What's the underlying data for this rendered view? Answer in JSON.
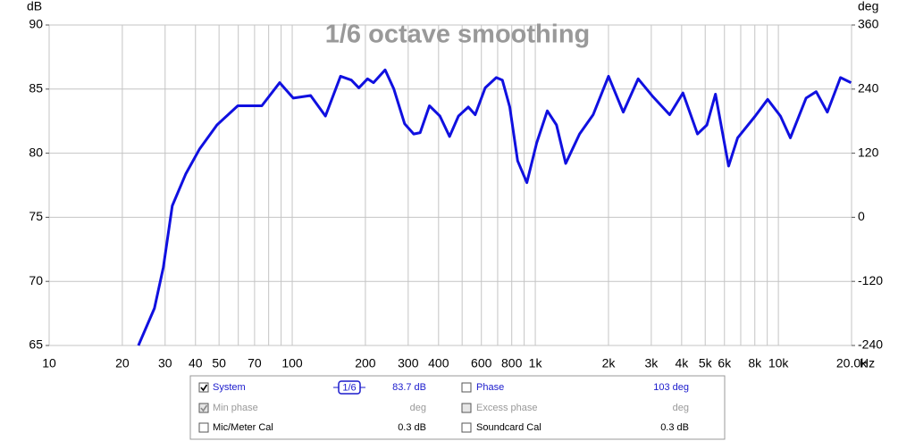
{
  "chart_data": {
    "type": "line",
    "title": "1/6 octave smoothing",
    "ylabel": "dB",
    "y2label": "deg",
    "xlabel": "Hz",
    "xscale": "log",
    "grid": true,
    "x": [
      23.3,
      27.1,
      29.5,
      32.1,
      36.5,
      41.5,
      49,
      59.7,
      75,
      88.8,
      101,
      119,
      137,
      158,
      175,
      188,
      204,
      216,
      241,
      262,
      290,
      316,
      336,
      367,
      405,
      444,
      483,
      530,
      566,
      622,
      691,
      732,
      785,
      846,
      923,
      1013,
      1120,
      1222,
      1334,
      1521,
      1729,
      2000,
      2300,
      2650,
      3050,
      3570,
      4050,
      4650,
      5080,
      5510,
      5940,
      6240,
      6800,
      8030,
      9030,
      10200,
      11200,
      13000,
      14300,
      15900,
      18000,
      19900
    ],
    "series": [
      {
        "name": "System",
        "color": "#1010e0",
        "values": [
          65.0,
          67.9,
          71.1,
          75.9,
          78.4,
          80.3,
          82.2,
          83.7,
          83.7,
          85.5,
          84.3,
          84.5,
          82.9,
          86.0,
          85.7,
          85.1,
          85.8,
          85.5,
          86.5,
          85.0,
          82.3,
          81.5,
          81.6,
          83.7,
          82.9,
          81.3,
          82.9,
          83.6,
          83.0,
          85.1,
          85.9,
          85.7,
          83.6,
          79.4,
          77.7,
          80.8,
          83.3,
          82.2,
          79.2,
          81.5,
          83.0,
          86.0,
          83.2,
          85.8,
          84.4,
          83.0,
          84.7,
          81.5,
          82.2,
          84.6,
          81.2,
          79.0,
          81.2,
          82.9,
          84.2,
          82.9,
          81.2,
          84.3,
          84.8,
          83.2,
          85.9,
          85.5
        ]
      }
    ],
    "xlim": [
      10,
      20000
    ],
    "ylim": [
      65,
      90
    ],
    "y2lim": [
      -240,
      360
    ],
    "xticks": [
      10,
      20,
      30,
      40,
      50,
      70,
      100,
      200,
      300,
      400,
      600,
      800,
      {
        "value": 1000,
        "label": "1k"
      },
      {
        "value": 2000,
        "label": "2k"
      },
      {
        "value": 3000,
        "label": "3k"
      },
      {
        "value": 4000,
        "label": "4k"
      },
      {
        "value": 5000,
        "label": "5k"
      },
      {
        "value": 6000,
        "label": "6k"
      },
      {
        "value": 8000,
        "label": "8k"
      },
      {
        "value": 10000,
        "label": "10k"
      },
      {
        "value": 20000,
        "label": "20.0k"
      }
    ],
    "xminorticks": [
      60,
      80,
      90,
      500,
      700,
      900,
      7000,
      9000
    ],
    "yticks": [
      65,
      70,
      75,
      80,
      85,
      90
    ],
    "y2ticks": [
      -240,
      -120,
      0,
      120,
      240,
      360
    ]
  },
  "panel": {
    "smoothing": "1/6",
    "left": [
      {
        "value": "83.7 dB",
        "checked": true
      },
      {
        "label": "Min phase",
        "value": "deg",
        "checked": true,
        "disabled": true
      },
      {
        "label": "Mic/Meter Cal",
        "value": "0.3 dB",
        "checked": false
      }
    ],
    "right": [
      {
        "label": "Phase",
        "value": "103 deg",
        "checked": false
      },
      {
        "label": "Excess phase",
        "value": "deg",
        "checked": false,
        "disabled": true
      },
      {
        "label": "Soundcard Cal",
        "value": "0.3 dB",
        "checked": false
      }
    ]
  }
}
